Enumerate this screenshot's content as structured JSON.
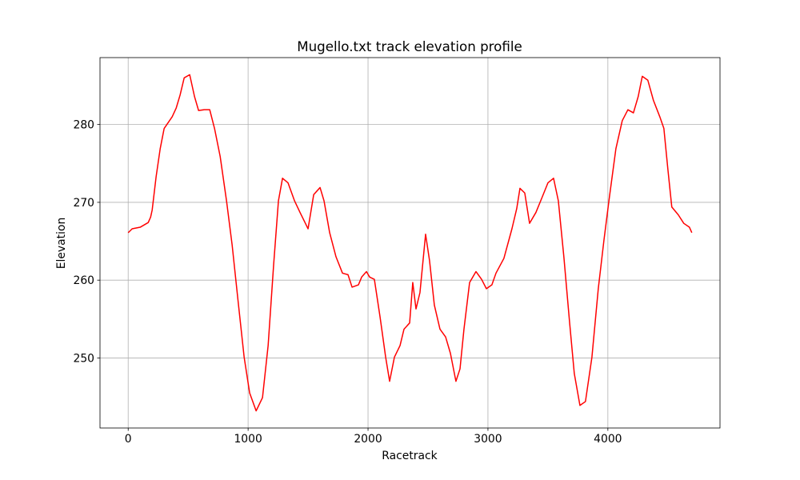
{
  "chart_data": {
    "type": "line",
    "title": "Mugello.txt track elevation profile",
    "x_label": "Racetrack",
    "y_label": "Elevation",
    "x": [
      0,
      33,
      100,
      167,
      187,
      200,
      233,
      267,
      300,
      367,
      400,
      433,
      467,
      513,
      553,
      587,
      633,
      680,
      720,
      767,
      820,
      867,
      913,
      967,
      1013,
      1067,
      1120,
      1167,
      1213,
      1253,
      1287,
      1333,
      1387,
      1433,
      1500,
      1547,
      1600,
      1633,
      1680,
      1733,
      1787,
      1833,
      1867,
      1920,
      1947,
      1987,
      2013,
      2053,
      2100,
      2147,
      2180,
      2220,
      2267,
      2300,
      2347,
      2373,
      2400,
      2433,
      2480,
      2513,
      2553,
      2600,
      2647,
      2687,
      2733,
      2767,
      2800,
      2847,
      2900,
      2947,
      2987,
      3033,
      3067,
      3133,
      3200,
      3240,
      3267,
      3307,
      3347,
      3400,
      3453,
      3500,
      3547,
      3587,
      3633,
      3680,
      3720,
      3767,
      3813,
      3867,
      3920,
      3967,
      4013,
      4067,
      4120,
      4167,
      4213,
      4253,
      4287,
      4333,
      4380,
      4433,
      4467,
      4500,
      4533,
      4587,
      4633,
      4680,
      4700
    ],
    "series": [
      {
        "name": "Elevation",
        "color": "#ff0000",
        "values": [
          266.1,
          266.6,
          266.8,
          267.4,
          268.1,
          269.0,
          273.3,
          276.9,
          279.5,
          281.0,
          282.1,
          283.8,
          286.0,
          286.4,
          283.6,
          281.8,
          281.9,
          281.9,
          279.5,
          275.9,
          270.2,
          264.5,
          257.8,
          250.1,
          245.5,
          243.2,
          244.9,
          251.6,
          262.0,
          270.2,
          273.1,
          272.5,
          270.2,
          268.7,
          266.6,
          271.0,
          271.9,
          270.2,
          266.1,
          263.0,
          260.9,
          260.7,
          259.1,
          259.4,
          260.4,
          261.1,
          260.4,
          260.1,
          255.3,
          250.1,
          247.0,
          250.1,
          251.6,
          253.7,
          254.5,
          259.7,
          256.3,
          258.4,
          265.9,
          262.5,
          256.8,
          253.7,
          252.7,
          250.6,
          247.0,
          248.6,
          253.7,
          259.7,
          261.1,
          260.1,
          258.9,
          259.4,
          260.9,
          262.8,
          266.6,
          269.2,
          271.8,
          271.2,
          267.3,
          268.7,
          270.7,
          272.5,
          273.1,
          270.2,
          263.0,
          254.7,
          248.0,
          243.9,
          244.4,
          250.1,
          258.9,
          265.1,
          270.7,
          276.9,
          280.5,
          281.9,
          281.5,
          283.6,
          286.2,
          285.7,
          283.1,
          281.0,
          279.5,
          274.3,
          269.4,
          268.4,
          267.3,
          266.8,
          266.1
        ]
      }
    ],
    "xlim": [
      -235,
      4935
    ],
    "ylim": [
      241.0,
      288.6
    ],
    "xticks": [
      0,
      1000,
      2000,
      3000,
      4000
    ],
    "yticks": [
      250,
      260,
      270,
      280
    ],
    "grid": true
  }
}
